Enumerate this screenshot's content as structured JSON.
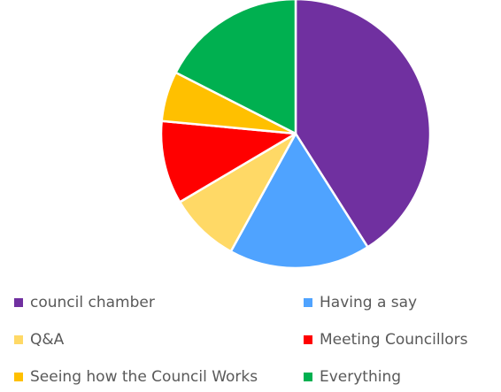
{
  "chart_data": {
    "type": "pie",
    "title": "",
    "colors": {
      "council chamber": "#7030A0",
      "Having a say": "#4FA3FF",
      "Q&A": "#FFD966",
      "Meeting Councillors": "#FF0000",
      "Seeing how the Council Works": "#FFC000",
      "Everything": "#00B050"
    },
    "categories": [
      "council chamber",
      "Having a say",
      "Q&A",
      "Meeting Councillors",
      "Seeing how the Council Works",
      "Everything"
    ],
    "values": [
      41,
      17,
      8.5,
      10,
      6,
      17.5
    ],
    "legend_position": "bottom"
  }
}
